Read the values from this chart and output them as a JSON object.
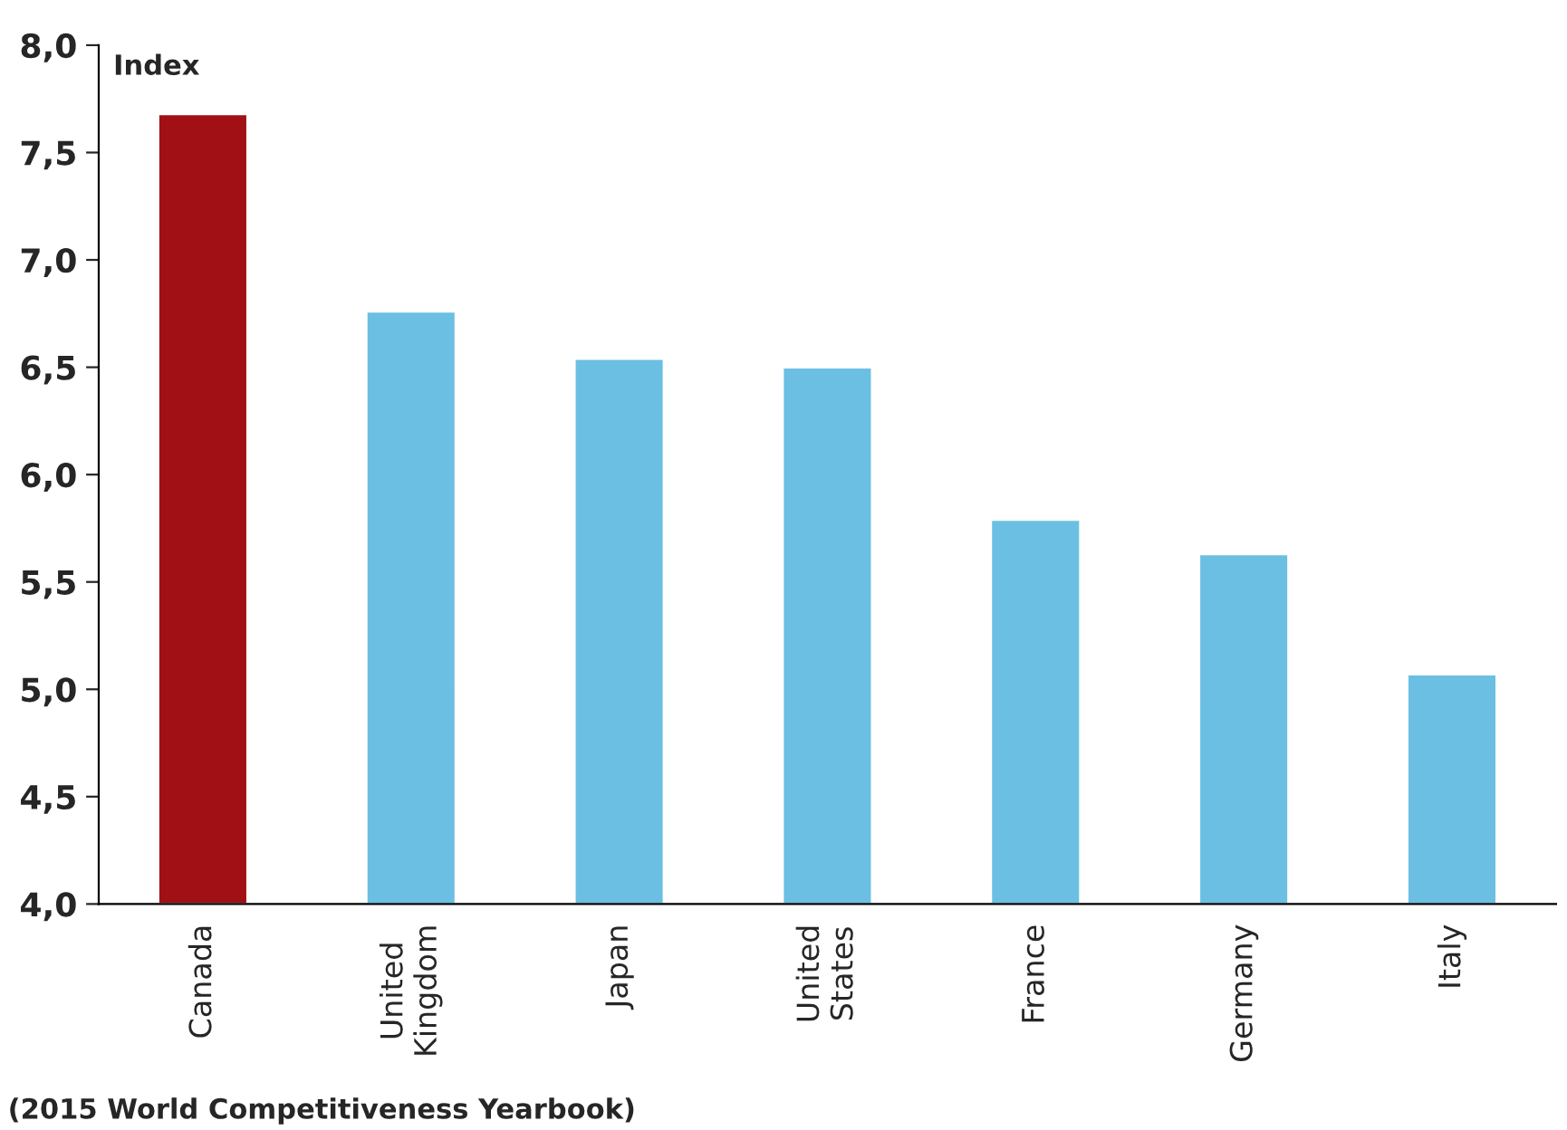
{
  "chart_data": {
    "type": "bar",
    "ylabel": "Index",
    "categories": [
      "Canada",
      "United Kingdom",
      "Japan",
      "United States",
      "France",
      "Germany",
      "Italy"
    ],
    "values": [
      7.68,
      6.76,
      6.54,
      6.5,
      5.79,
      5.63,
      5.07
    ],
    "colors": [
      "#a01015",
      "#6bbfe3",
      "#6bbfe3",
      "#6bbfe3",
      "#6bbfe3",
      "#6bbfe3",
      "#6bbfe3"
    ],
    "ylim": [
      4,
      8
    ],
    "yticks": [
      {
        "value": 4,
        "label": "4,0"
      },
      {
        "value": 4.5,
        "label": "4,5"
      },
      {
        "value": 5,
        "label": "5,0"
      },
      {
        "value": 5.5,
        "label": "5,5"
      },
      {
        "value": 6,
        "label": "6,0"
      },
      {
        "value": 6.5,
        "label": "6,5"
      },
      {
        "value": 7,
        "label": "7,0"
      },
      {
        "value": 7.5,
        "label": "7,5"
      },
      {
        "value": 8,
        "label": "8,0"
      }
    ],
    "grid": false,
    "annotations": [
      "(2015 World Competitiveness Yearbook)"
    ]
  }
}
